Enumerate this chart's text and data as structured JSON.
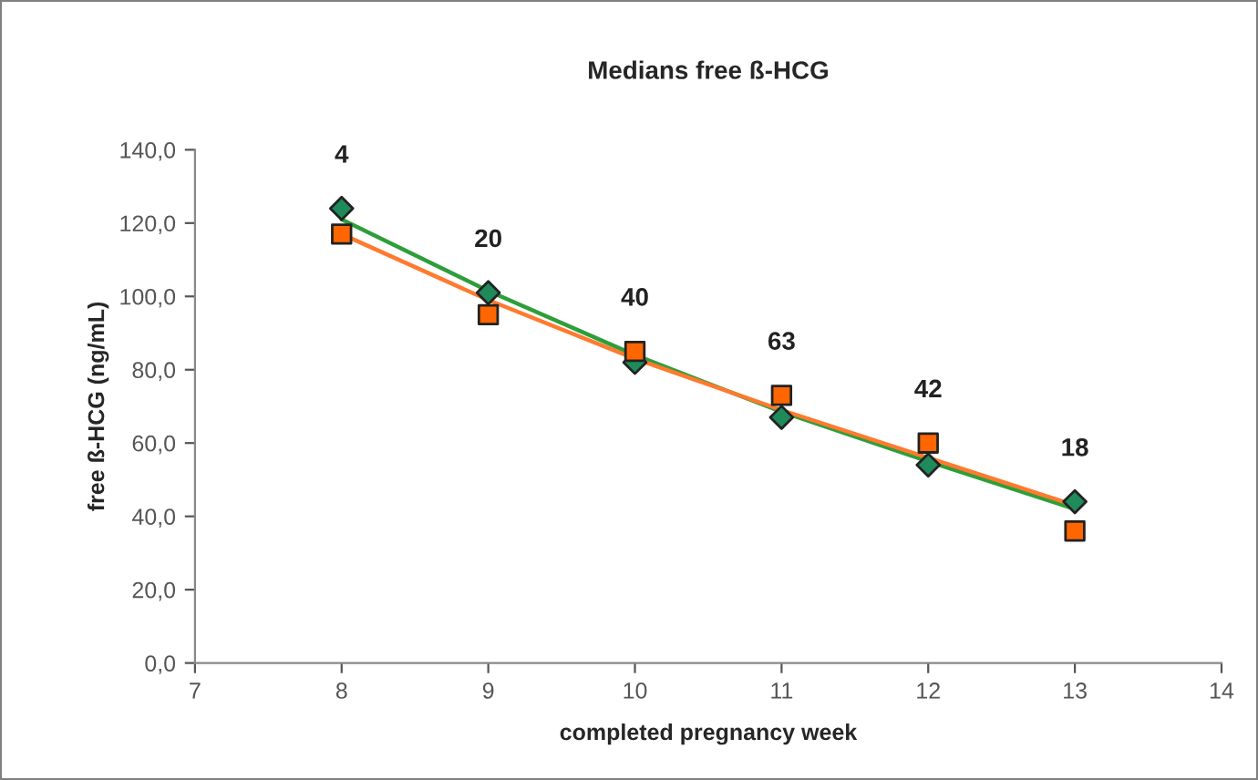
{
  "chart_data": {
    "type": "scatter",
    "title": "Medians free ß-HCG",
    "xlabel": "completed pregnancy week",
    "ylabel": "free ß-HCG (ng/mL)",
    "xlim": [
      7,
      14
    ],
    "xticks": [
      7,
      8,
      9,
      10,
      11,
      12,
      13,
      14
    ],
    "ylim": [
      0,
      140
    ],
    "yticks": [
      {
        "value": 0,
        "label": "0,0"
      },
      {
        "value": 20,
        "label": "20,0"
      },
      {
        "value": 40,
        "label": "40,0"
      },
      {
        "value": 60,
        "label": "60,0"
      },
      {
        "value": 80,
        "label": "80,0"
      },
      {
        "value": 100,
        "label": "100,0"
      },
      {
        "value": 120,
        "label": "120,0"
      },
      {
        "value": 140,
        "label": "140,0"
      }
    ],
    "grid": false,
    "legend": false,
    "series": [
      {
        "type": "line",
        "marker": "none",
        "color": "#2e9e3a",
        "x": [
          8,
          9,
          10,
          11,
          12,
          13
        ],
        "values": [
          121,
          101.5,
          84,
          68.5,
          55,
          42
        ]
      },
      {
        "type": "line",
        "marker": "none",
        "color": "#ff7a2e",
        "x": [
          8,
          9,
          10,
          11,
          12,
          13
        ],
        "values": [
          117,
          99,
          83,
          69,
          56,
          43
        ]
      },
      {
        "marker": "diamond",
        "color": "#1f8a5a",
        "x": [
          8,
          9,
          10,
          11,
          12,
          13
        ],
        "values": [
          124,
          101,
          82,
          67,
          54,
          44
        ]
      },
      {
        "marker": "square",
        "color": "#ff6600",
        "x": [
          8,
          9,
          10,
          11,
          12,
          13
        ],
        "values": [
          117,
          95,
          85,
          73,
          60,
          36
        ]
      }
    ],
    "annotations": [
      {
        "text": "4",
        "x": 8,
        "y": 124
      },
      {
        "text": "20",
        "x": 9,
        "y": 101
      },
      {
        "text": "40",
        "x": 10,
        "y": 85
      },
      {
        "text": "63",
        "x": 11,
        "y": 73
      },
      {
        "text": "42",
        "x": 12,
        "y": 60
      },
      {
        "text": "18",
        "x": 13,
        "y": 44
      }
    ]
  }
}
